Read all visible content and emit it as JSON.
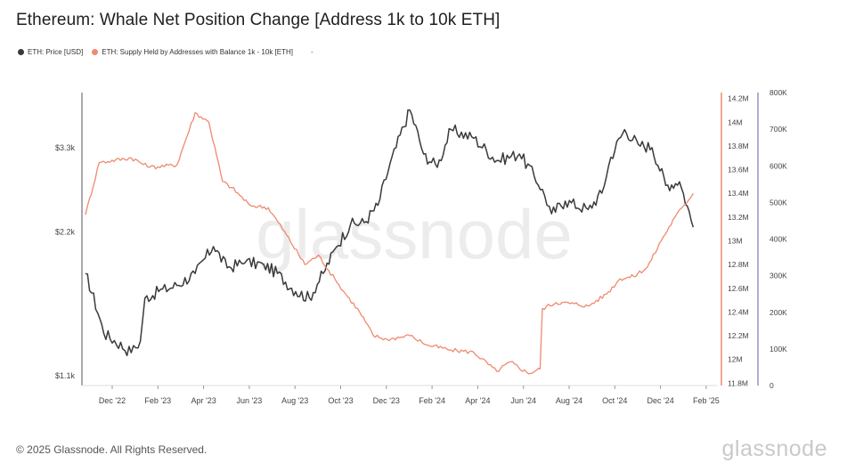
{
  "title": "Ethereum: Whale Net Position Change [Address 1k to 10k ETH]",
  "legend": {
    "items": [
      {
        "label": "ETH: Price [USD]",
        "color": "#3a3a3a"
      },
      {
        "label": "ETH: Supply Held by Addresses with Balance 1k - 10k [ETH]",
        "color": "#ee8a6f"
      }
    ],
    "extra": "-"
  },
  "watermark": "glassnode",
  "footer": {
    "copyright": "© 2025 Glassnode. All Rights Reserved.",
    "logo": "glassnode"
  },
  "chart_data": {
    "type": "line",
    "x_tick_labels": [
      "Dec '22",
      "Feb '23",
      "Apr '23",
      "Jun '23",
      "Aug '23",
      "Oct '23",
      "Dec '23",
      "Feb '24",
      "Apr '24",
      "Jun '24",
      "Aug '24",
      "Oct '24",
      "Dec '24",
      "Feb '25"
    ],
    "y_left": {
      "scale": "log",
      "ticks": [
        {
          "label": "$3.3k",
          "value": 3300
        },
        {
          "label": "$2.2k",
          "value": 2200
        },
        {
          "label": "$1.1k",
          "value": 1100
        }
      ],
      "range": [
        1050,
        4300
      ]
    },
    "y_right": {
      "ticks": [
        "14.2M",
        "14M",
        "13.8M",
        "13.6M",
        "13.4M",
        "13.2M",
        "13M",
        "12.8M",
        "12.6M",
        "12.4M",
        "12.2M",
        "12M",
        "11.8M"
      ],
      "range": [
        11.78,
        14.25
      ],
      "axis_color": "#ee8a6f"
    },
    "y_right2": {
      "ticks": [
        "800K",
        "700K",
        "600K",
        "500K",
        "400K",
        "300K",
        "200K",
        "100K",
        "0"
      ],
      "range": [
        0,
        800
      ],
      "axis_color": "#9a8fc7"
    },
    "series": [
      {
        "name": "ETH: Price [USD]",
        "axis": "left",
        "color": "#3a3a3a",
        "t": [
          0,
          0.4,
          1,
          1.2,
          1.3,
          1.6,
          2,
          2.4,
          2.8,
          3.1,
          3.5,
          3.9,
          4.2,
          4.6,
          4.9,
          5.2,
          5.5,
          5.8,
          6.1,
          6.4,
          6.8,
          7.1,
          7.4,
          7.7,
          8.0,
          8.5,
          9.0,
          9.5,
          10.0,
          10.2,
          10.5,
          11.0,
          11.3,
          11.5,
          11.8,
          12.1,
          12.4,
          12.7,
          13.0,
          13.3
        ],
        "values": [
          1800,
          1350,
          1230,
          1300,
          1600,
          1650,
          1700,
          1800,
          2050,
          1850,
          1900,
          1880,
          1800,
          1650,
          1600,
          1800,
          2050,
          2280,
          2300,
          2500,
          3300,
          3950,
          3200,
          3000,
          3600,
          3450,
          3100,
          3200,
          2700,
          2400,
          2550,
          2450,
          2650,
          3150,
          3600,
          3350,
          3300,
          2750,
          2800,
          2250
        ]
      },
      {
        "name": "ETH: Supply Held by Addresses with Balance 1k - 10k [ETH]",
        "axis": "right",
        "color": "#ee8a6f",
        "t": [
          0,
          0.3,
          1,
          1.4,
          2,
          2.4,
          2.7,
          3.0,
          3.2,
          3.6,
          4.0,
          4.4,
          4.8,
          5.1,
          5.5,
          6.0,
          6.3,
          6.6,
          7.1,
          7.5,
          8.0,
          8.5,
          9.0,
          9.3,
          9.7,
          9.95,
          10.0,
          10.3,
          10.7,
          11.0,
          11.4,
          11.7,
          12.0,
          12.3,
          12.6,
          12.9,
          13.1,
          13.3
        ],
        "values": [
          13.22,
          13.66,
          13.7,
          13.62,
          13.64,
          14.08,
          14.0,
          13.5,
          13.45,
          13.3,
          13.28,
          13.05,
          12.8,
          12.88,
          12.65,
          12.4,
          12.2,
          12.17,
          12.2,
          12.12,
          12.08,
          12.06,
          11.9,
          11.98,
          11.88,
          11.92,
          12.43,
          12.48,
          12.47,
          12.45,
          12.55,
          12.68,
          12.7,
          12.78,
          13.0,
          13.2,
          13.3,
          13.4
        ]
      }
    ]
  }
}
